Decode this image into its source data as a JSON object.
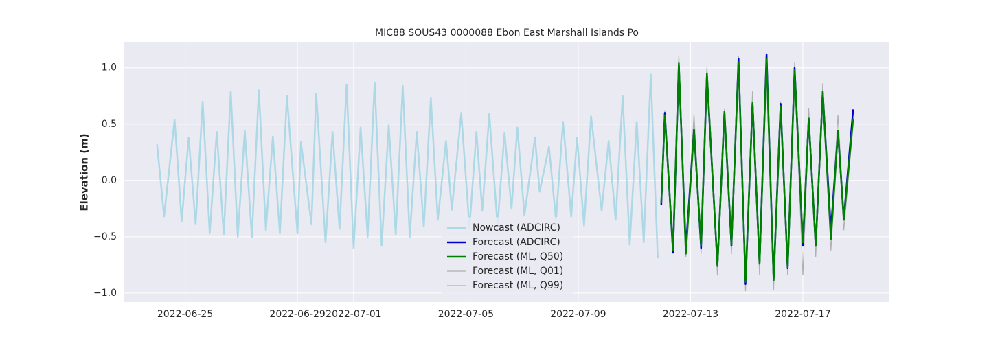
{
  "chart_data": {
    "type": "line",
    "title": "MIC88 SOUS43 0000088 Ebon East Marshall Islands Po",
    "y_label": "Elevation (m)",
    "xlim": [
      "2022-06-22 20:00",
      "2022-07-20 02:00"
    ],
    "xticks": [
      "2022-06-25",
      "2022-06-29",
      "2022-07-01",
      "2022-07-05",
      "2022-07-09",
      "2022-07-13",
      "2022-07-17"
    ],
    "ylim": [
      -1.08,
      1.23
    ],
    "yticks": [
      {
        "value": -1,
        "label": "−1.0"
      },
      {
        "value": -0.5,
        "label": "−0.5"
      },
      {
        "value": 0,
        "label": "0.0"
      },
      0.5,
      {
        "value": 1,
        "label": "1.0"
      }
    ],
    "grid": true,
    "legend": "lower center",
    "series": [
      {
        "name": "Nowcast (ADCIRC)",
        "color": "#add8e6",
        "width": 2.5,
        "x": [
          "2022-06-24 00:00",
          "2022-06-24 06:00",
          "2022-06-24 15:00",
          "2022-06-24 21:00",
          "2022-06-25 03:00",
          "2022-06-25 09:00",
          "2022-06-25 15:00",
          "2022-06-25 21:00",
          "2022-06-26 03:00",
          "2022-06-26 09:00",
          "2022-06-26 15:00",
          "2022-06-26 21:00",
          "2022-06-27 03:00",
          "2022-06-27 09:00",
          "2022-06-27 15:00",
          "2022-06-27 21:00",
          "2022-06-28 03:00",
          "2022-06-28 09:00",
          "2022-06-28 15:00",
          "2022-06-29 00:00",
          "2022-06-29 03:00",
          "2022-06-29 12:00",
          "2022-06-29 16:00",
          "2022-06-30 00:00",
          "2022-06-30 06:00",
          "2022-06-30 12:00",
          "2022-06-30 18:00",
          "2022-07-01 00:00",
          "2022-07-01 06:00",
          "2022-07-01 12:00",
          "2022-07-01 18:00",
          "2022-07-02 00:00",
          "2022-07-02 06:00",
          "2022-07-02 12:00",
          "2022-07-02 18:00",
          "2022-07-03 00:00",
          "2022-07-03 06:00",
          "2022-07-03 12:00",
          "2022-07-03 18:00",
          "2022-07-04 00:00",
          "2022-07-04 07:00",
          "2022-07-04 12:00",
          "2022-07-04 20:00",
          "2022-07-05 03:00",
          "2022-07-05 09:00",
          "2022-07-05 14:00",
          "2022-07-05 20:00",
          "2022-07-06 03:00",
          "2022-07-06 09:00",
          "2022-07-06 15:00",
          "2022-07-06 20:00",
          "2022-07-07 02:00",
          "2022-07-07 11:00",
          "2022-07-07 15:00",
          "2022-07-07 23:00",
          "2022-07-08 05:00",
          "2022-07-08 11:00",
          "2022-07-08 18:00",
          "2022-07-08 23:00",
          "2022-07-09 05:00",
          "2022-07-09 11:00",
          "2022-07-09 20:00",
          "2022-07-10 02:00",
          "2022-07-10 08:00",
          "2022-07-10 14:00",
          "2022-07-10 20:00",
          "2022-07-11 02:00",
          "2022-07-11 08:00",
          "2022-07-11 14:00",
          "2022-07-11 20:00"
        ],
        "values": [
          0.32,
          -0.32,
          0.54,
          -0.36,
          0.38,
          -0.39,
          0.7,
          -0.47,
          0.43,
          -0.48,
          0.79,
          -0.5,
          0.44,
          -0.5,
          0.8,
          -0.44,
          0.39,
          -0.47,
          0.75,
          -0.47,
          0.34,
          -0.39,
          0.77,
          -0.55,
          0.43,
          -0.43,
          0.85,
          -0.6,
          0.47,
          -0.5,
          0.87,
          -0.58,
          0.49,
          -0.48,
          0.84,
          -0.5,
          0.43,
          -0.41,
          0.73,
          -0.35,
          0.35,
          -0.26,
          0.6,
          -0.42,
          0.43,
          -0.27,
          0.59,
          -0.4,
          0.42,
          -0.25,
          0.47,
          -0.31,
          0.38,
          -0.1,
          0.3,
          -0.35,
          0.52,
          -0.32,
          0.38,
          -0.4,
          0.57,
          -0.27,
          0.35,
          -0.35,
          0.75,
          -0.57,
          0.52,
          -0.55,
          0.94,
          -0.69
        ]
      },
      {
        "name": "Forecast (ADCIRC)",
        "color": "#0000cd",
        "width": 2.5,
        "x": [
          "2022-07-11 23:00",
          "2022-07-12 02:00",
          "2022-07-12 09:00",
          "2022-07-12 14:00",
          "2022-07-12 20:00",
          "2022-07-13 03:00",
          "2022-07-13 09:00",
          "2022-07-13 14:00",
          "2022-07-13 23:00",
          "2022-07-14 05:00",
          "2022-07-14 11:00",
          "2022-07-14 17:00",
          "2022-07-14 23:00",
          "2022-07-15 05:00",
          "2022-07-15 11:00",
          "2022-07-15 17:00",
          "2022-07-15 23:00",
          "2022-07-16 05:00",
          "2022-07-16 11:00",
          "2022-07-16 17:00",
          "2022-07-17 00:00",
          "2022-07-17 05:00",
          "2022-07-17 11:00",
          "2022-07-17 17:00",
          "2022-07-18 00:00",
          "2022-07-18 06:00",
          "2022-07-18 11:00",
          "2022-07-18 19:00"
        ],
        "values": [
          -0.22,
          0.6,
          -0.64,
          1.02,
          -0.6,
          0.45,
          -0.6,
          0.93,
          -0.75,
          0.6,
          -0.58,
          1.08,
          -0.92,
          0.68,
          -0.73,
          1.12,
          -0.88,
          0.68,
          -0.78,
          1.0,
          -0.58,
          0.55,
          -0.58,
          0.78,
          -0.44,
          0.43,
          -0.34,
          0.63
        ]
      },
      {
        "name": "Forecast (ML, Q50)",
        "color": "#008000",
        "width": 2.5,
        "x": [
          "2022-07-11 23:00",
          "2022-07-12 02:00",
          "2022-07-12 09:00",
          "2022-07-12 14:00",
          "2022-07-12 20:00",
          "2022-07-13 03:00",
          "2022-07-13 09:00",
          "2022-07-13 14:00",
          "2022-07-13 23:00",
          "2022-07-14 05:00",
          "2022-07-14 11:00",
          "2022-07-14 17:00",
          "2022-07-14 23:00",
          "2022-07-15 05:00",
          "2022-07-15 11:00",
          "2022-07-15 17:00",
          "2022-07-15 23:00",
          "2022-07-16 05:00",
          "2022-07-16 11:00",
          "2022-07-16 17:00",
          "2022-07-17 00:00",
          "2022-07-17 05:00",
          "2022-07-17 11:00",
          "2022-07-17 17:00",
          "2022-07-18 00:00",
          "2022-07-18 06:00",
          "2022-07-18 11:00",
          "2022-07-18 19:00"
        ],
        "values": [
          -0.2,
          0.58,
          -0.62,
          1.04,
          -0.65,
          0.44,
          -0.58,
          0.95,
          -0.76,
          0.61,
          -0.57,
          1.05,
          -0.9,
          0.69,
          -0.74,
          1.08,
          -0.89,
          0.66,
          -0.77,
          0.98,
          -0.55,
          0.55,
          -0.58,
          0.79,
          -0.52,
          0.44,
          -0.35,
          0.55
        ]
      },
      {
        "name": "Forecast (ML, Q01)",
        "color": "#b0b0b0",
        "width": 1.2,
        "x": [
          "2022-07-11 23:00",
          "2022-07-12 02:00",
          "2022-07-12 09:00",
          "2022-07-12 14:00",
          "2022-07-12 20:00",
          "2022-07-13 03:00",
          "2022-07-13 09:00",
          "2022-07-13 14:00",
          "2022-07-13 23:00",
          "2022-07-14 05:00",
          "2022-07-14 11:00",
          "2022-07-14 17:00",
          "2022-07-14 23:00",
          "2022-07-15 05:00",
          "2022-07-15 11:00",
          "2022-07-15 17:00",
          "2022-07-15 23:00",
          "2022-07-16 05:00",
          "2022-07-16 11:00",
          "2022-07-16 17:00",
          "2022-07-17 00:00",
          "2022-07-17 05:00",
          "2022-07-17 11:00",
          "2022-07-17 17:00",
          "2022-07-18 00:00",
          "2022-07-18 06:00",
          "2022-07-18 11:00",
          "2022-07-18 19:00"
        ],
        "values": [
          -0.2,
          0.55,
          -0.65,
          0.95,
          -0.68,
          0.4,
          -0.65,
          0.98,
          -0.84,
          0.58,
          -0.65,
          1.0,
          -0.98,
          0.65,
          -0.84,
          1.02,
          -0.97,
          0.63,
          -0.84,
          0.95,
          -0.84,
          0.5,
          -0.68,
          0.75,
          -0.62,
          0.38,
          -0.44,
          0.5
        ]
      },
      {
        "name": "Forecast (ML, Q99)",
        "color": "#b0b0b0",
        "width": 1.2,
        "x": [
          "2022-07-11 23:00",
          "2022-07-12 02:00",
          "2022-07-12 09:00",
          "2022-07-12 14:00",
          "2022-07-12 20:00",
          "2022-07-13 03:00",
          "2022-07-13 09:00",
          "2022-07-13 14:00",
          "2022-07-13 23:00",
          "2022-07-14 05:00",
          "2022-07-14 11:00",
          "2022-07-14 17:00",
          "2022-07-14 23:00",
          "2022-07-15 05:00",
          "2022-07-15 11:00",
          "2022-07-15 17:00",
          "2022-07-15 23:00",
          "2022-07-16 05:00",
          "2022-07-16 11:00",
          "2022-07-16 17:00",
          "2022-07-17 00:00",
          "2022-07-17 05:00",
          "2022-07-17 11:00",
          "2022-07-17 17:00",
          "2022-07-18 00:00",
          "2022-07-18 06:00",
          "2022-07-18 11:00",
          "2022-07-18 19:00"
        ],
        "values": [
          -0.18,
          0.62,
          -0.58,
          1.11,
          -0.62,
          0.59,
          -0.56,
          1.01,
          -0.7,
          0.63,
          -0.52,
          1.1,
          -0.88,
          0.79,
          -0.7,
          1.1,
          -0.85,
          0.7,
          -0.72,
          1.05,
          -0.5,
          0.64,
          -0.55,
          0.86,
          -0.45,
          0.58,
          -0.3,
          0.6
        ]
      }
    ]
  }
}
